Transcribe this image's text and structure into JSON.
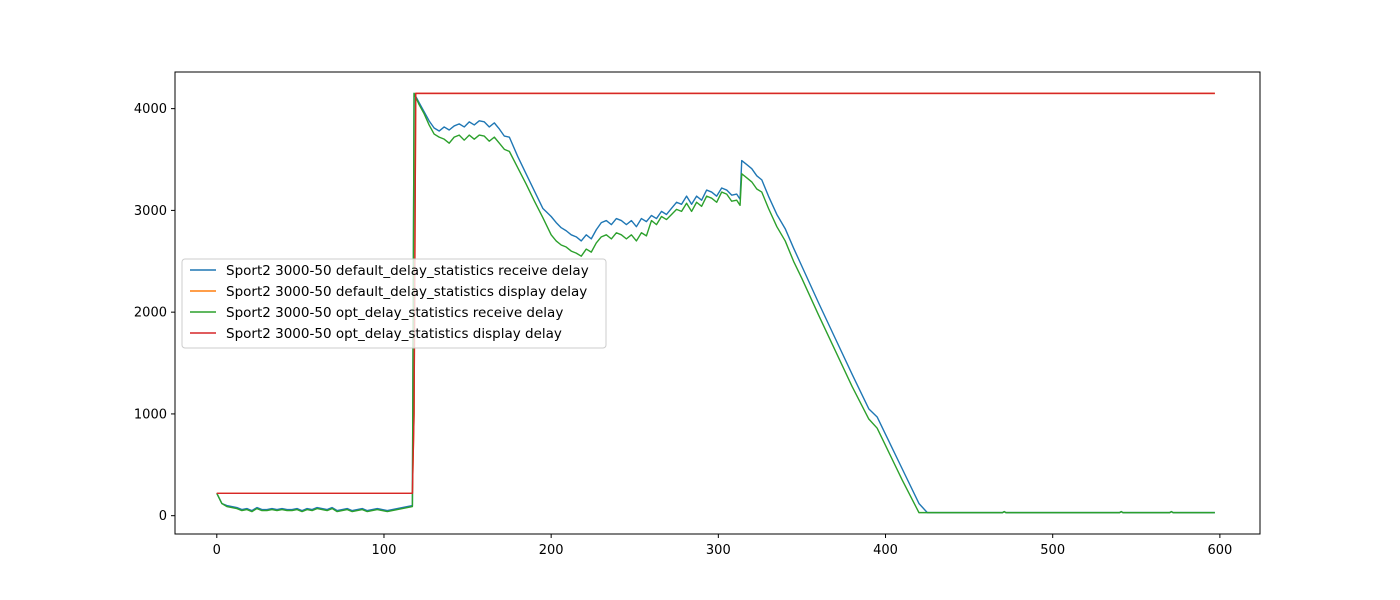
{
  "chart_data": {
    "type": "line",
    "title": "",
    "xlabel": "",
    "ylabel": "",
    "xlim": [
      -25,
      624
    ],
    "ylim": [
      -180,
      4360
    ],
    "grid": false,
    "legend_placement": "center-left",
    "x_ticks": [
      0,
      100,
      200,
      300,
      400,
      500,
      600
    ],
    "y_ticks": [
      0,
      1000,
      2000,
      3000,
      4000
    ],
    "x_tick_labels": [
      "0",
      "100",
      "200",
      "300",
      "400",
      "500",
      "600"
    ],
    "y_tick_labels": [
      "0",
      "1000",
      "2000",
      "3000",
      "4000"
    ],
    "series": [
      {
        "name": "Sport2 3000-50 default_delay_statistics receive delay",
        "color": "#1f77b4",
        "x": [
          0,
          3,
          6,
          9,
          12,
          15,
          18,
          21,
          24,
          27,
          30,
          33,
          36,
          39,
          42,
          45,
          48,
          51,
          54,
          57,
          60,
          63,
          66,
          69,
          72,
          75,
          78,
          81,
          84,
          87,
          90,
          93,
          96,
          99,
          102,
          105,
          108,
          111,
          114,
          117,
          118,
          121,
          124,
          127,
          130,
          133,
          136,
          139,
          142,
          145,
          148,
          151,
          154,
          157,
          160,
          163,
          166,
          169,
          172,
          175,
          180,
          185,
          190,
          195,
          200,
          203,
          206,
          209,
          212,
          215,
          218,
          221,
          224,
          227,
          230,
          233,
          236,
          239,
          242,
          245,
          248,
          251,
          254,
          257,
          260,
          263,
          266,
          269,
          272,
          275,
          278,
          281,
          284,
          287,
          290,
          293,
          296,
          299,
          302,
          305,
          308,
          311,
          313,
          314,
          317,
          320,
          323,
          326,
          330,
          335,
          340,
          345,
          350,
          360,
          370,
          380,
          390,
          395,
          400,
          410,
          420,
          425,
          430,
          470,
          471,
          472,
          500,
          540,
          541,
          542,
          570,
          571,
          572,
          597
        ],
        "y": [
          220,
          120,
          100,
          90,
          80,
          60,
          70,
          50,
          80,
          60,
          60,
          70,
          60,
          70,
          60,
          60,
          70,
          50,
          70,
          60,
          80,
          70,
          60,
          80,
          50,
          60,
          70,
          50,
          60,
          70,
          50,
          60,
          70,
          60,
          50,
          60,
          70,
          80,
          90,
          100,
          4150,
          4060,
          3970,
          3880,
          3810,
          3780,
          3820,
          3790,
          3830,
          3850,
          3820,
          3870,
          3840,
          3880,
          3870,
          3820,
          3860,
          3800,
          3730,
          3720,
          3530,
          3360,
          3190,
          3020,
          2940,
          2880,
          2830,
          2800,
          2760,
          2740,
          2700,
          2760,
          2720,
          2810,
          2880,
          2900,
          2860,
          2920,
          2900,
          2860,
          2900,
          2840,
          2920,
          2890,
          2950,
          2920,
          2990,
          2960,
          3020,
          3080,
          3060,
          3140,
          3060,
          3140,
          3100,
          3200,
          3180,
          3140,
          3220,
          3200,
          3150,
          3160,
          3110,
          3490,
          3450,
          3410,
          3340,
          3300,
          3140,
          2960,
          2820,
          2630,
          2450,
          2090,
          1740,
          1390,
          1050,
          970,
          800,
          460,
          120,
          30,
          30,
          30,
          40,
          30,
          30,
          30,
          40,
          30,
          30,
          40,
          30,
          30
        ],
        "linewidth": 1.4
      },
      {
        "name": "Sport2 3000-50 default_delay_statistics display delay",
        "color": "#ff7f0e",
        "x": [
          0,
          117,
          118,
          119,
          597
        ],
        "y": [
          220,
          220,
          1000,
          4150,
          4150
        ],
        "linewidth": 1.4
      },
      {
        "name": "Sport2 3000-50 opt_delay_statistics receive delay",
        "color": "#2ca02c",
        "x": [
          0,
          3,
          6,
          9,
          12,
          15,
          18,
          21,
          24,
          27,
          30,
          33,
          36,
          39,
          42,
          45,
          48,
          51,
          54,
          57,
          60,
          63,
          66,
          69,
          72,
          75,
          78,
          81,
          84,
          87,
          90,
          93,
          96,
          99,
          102,
          105,
          108,
          111,
          114,
          117,
          118,
          121,
          124,
          127,
          130,
          133,
          136,
          139,
          142,
          145,
          148,
          151,
          154,
          157,
          160,
          163,
          166,
          169,
          172,
          175,
          180,
          185,
          190,
          195,
          200,
          203,
          206,
          209,
          212,
          215,
          218,
          221,
          224,
          227,
          230,
          233,
          236,
          239,
          242,
          245,
          248,
          251,
          254,
          257,
          260,
          263,
          266,
          269,
          272,
          275,
          278,
          281,
          284,
          287,
          290,
          293,
          296,
          299,
          302,
          305,
          308,
          311,
          313,
          314,
          317,
          320,
          323,
          326,
          330,
          335,
          340,
          345,
          350,
          360,
          370,
          380,
          390,
          395,
          400,
          410,
          420,
          423,
          430,
          470,
          471,
          472,
          500,
          540,
          541,
          542,
          570,
          571,
          572,
          597
        ],
        "y": [
          220,
          120,
          90,
          80,
          70,
          50,
          60,
          40,
          70,
          50,
          50,
          60,
          50,
          60,
          50,
          50,
          60,
          40,
          60,
          50,
          70,
          60,
          50,
          70,
          40,
          50,
          60,
          40,
          50,
          60,
          40,
          50,
          60,
          50,
          40,
          50,
          60,
          70,
          80,
          90,
          4150,
          4040,
          3950,
          3840,
          3750,
          3720,
          3700,
          3660,
          3720,
          3740,
          3690,
          3740,
          3700,
          3740,
          3730,
          3680,
          3720,
          3660,
          3600,
          3580,
          3420,
          3260,
          3090,
          2930,
          2760,
          2700,
          2660,
          2640,
          2600,
          2580,
          2550,
          2620,
          2590,
          2680,
          2740,
          2760,
          2720,
          2780,
          2760,
          2720,
          2760,
          2700,
          2780,
          2750,
          2900,
          2860,
          2940,
          2910,
          2960,
          3010,
          2990,
          3070,
          2990,
          3080,
          3040,
          3140,
          3120,
          3080,
          3180,
          3160,
          3090,
          3100,
          3050,
          3360,
          3320,
          3280,
          3210,
          3180,
          3020,
          2840,
          2700,
          2500,
          2330,
          1970,
          1620,
          1270,
          950,
          860,
          690,
          350,
          30,
          30,
          30,
          30,
          40,
          30,
          30,
          30,
          40,
          30,
          30,
          40,
          30,
          30
        ],
        "linewidth": 1.4
      },
      {
        "name": "Sport2 3000-50 opt_delay_statistics display delay",
        "color": "#d62728",
        "x": [
          0,
          117,
          118,
          119,
          597
        ],
        "y": [
          220,
          220,
          1000,
          4150,
          4150
        ],
        "linewidth": 1.4
      }
    ]
  }
}
